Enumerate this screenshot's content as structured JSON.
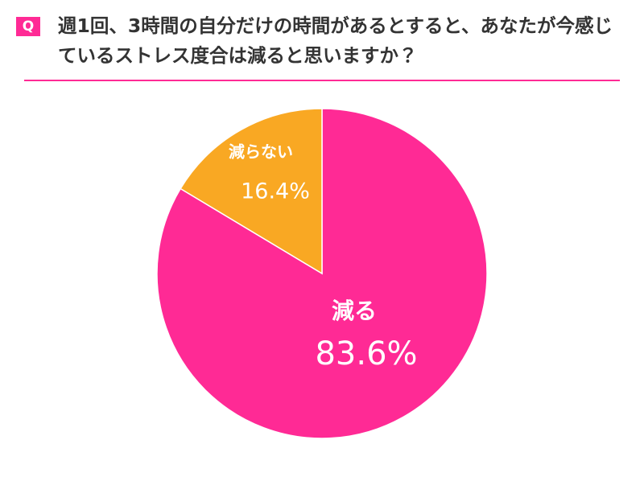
{
  "chart_data": {
    "type": "pie",
    "question_label": "Q",
    "title": "週1回、3時間の自分だけの時間があるとすると、あなたが今感じているストレス度合は減ると思いますか？",
    "categories": [
      "減る",
      "減らない"
    ],
    "values": [
      83.6,
      16.4
    ],
    "value_labels": [
      "83.6%",
      "16.4%"
    ],
    "colors": [
      "#ff2a95",
      "#f9a823"
    ]
  }
}
